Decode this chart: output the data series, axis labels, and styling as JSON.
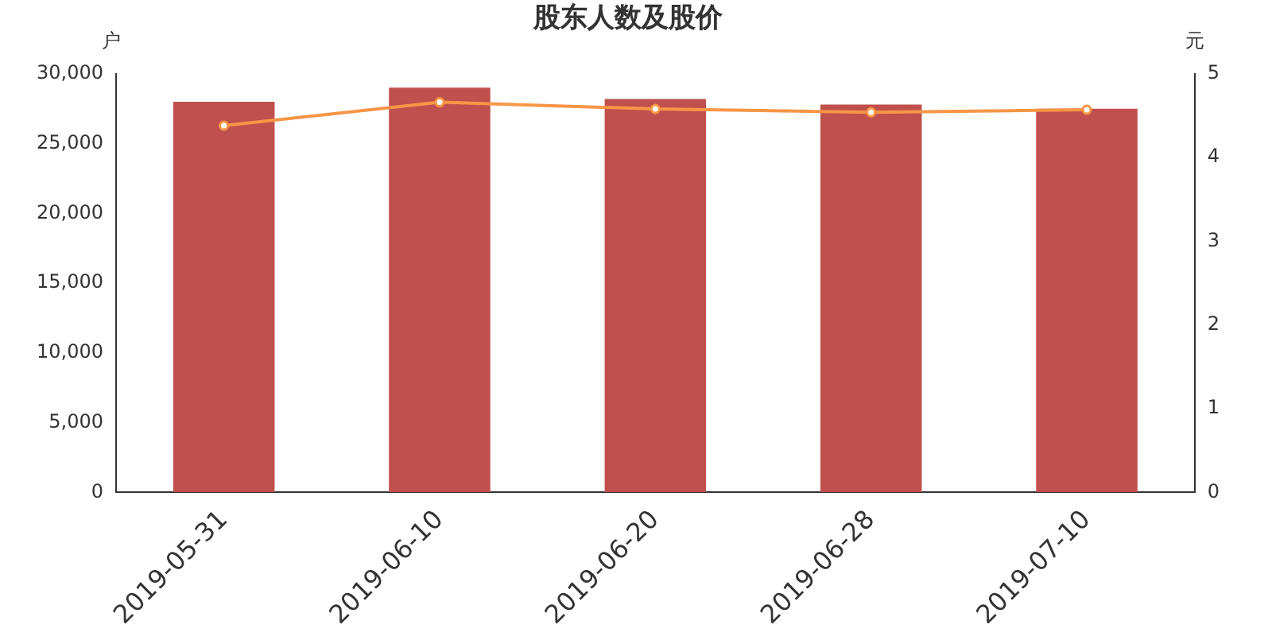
{
  "chart_data": {
    "type": "bar",
    "title": "股东人数及股价",
    "ylabel": "户",
    "y2label": "元",
    "categories": [
      "2019-05-31",
      "2019-06-10",
      "2019-06-20",
      "2019-06-28",
      "2019-07-10"
    ],
    "series": [
      {
        "color": "#c0504d",
        "values": [
          28000,
          29000,
          28200,
          27800,
          27500
        ]
      },
      {
        "type": "line",
        "axis": "y2",
        "color": "#f79646",
        "marker": "circle",
        "values": [
          4.38,
          4.66,
          4.58,
          4.54,
          4.57
        ]
      }
    ],
    "ylim": [
      0,
      30000
    ],
    "yticks": [
      0,
      {
        "value": 5000,
        "label": "5,000"
      },
      {
        "value": 10000,
        "label": "10,000"
      },
      {
        "value": 15000,
        "label": "15,000"
      },
      {
        "value": 20000,
        "label": "20,000"
      },
      {
        "value": 25000,
        "label": "25,000"
      },
      {
        "value": 30000,
        "label": "30,000"
      }
    ],
    "y2lim": [
      0,
      5
    ],
    "y2ticks": [
      0,
      1,
      2,
      3,
      4,
      5
    ],
    "grid": false,
    "legend": false
  }
}
